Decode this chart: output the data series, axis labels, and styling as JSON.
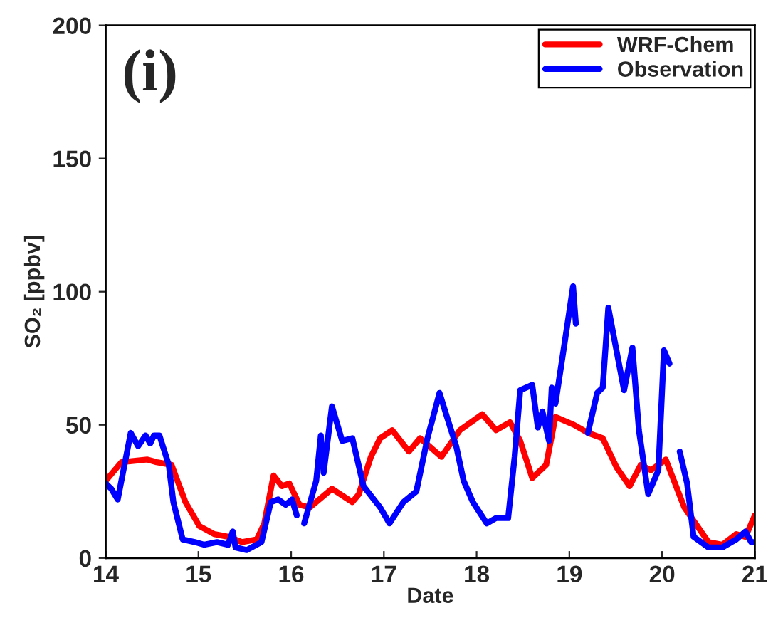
{
  "chart_data": {
    "type": "line",
    "xlabel": "Date",
    "ylabel": "SO₂ [ppbv]",
    "xlim": [
      14,
      21
    ],
    "xticks": [
      14,
      15,
      16,
      17,
      18,
      19,
      20,
      21
    ],
    "ylim": [
      0,
      200
    ],
    "yticks": [
      0,
      50,
      100,
      150,
      200
    ],
    "grid": false,
    "legend": "top right",
    "marker": "none",
    "line_style": "solid",
    "annotations": [
      "(i)"
    ],
    "series": [
      {
        "name": "WRF-Chem",
        "color": "#ff0000",
        "x": [
          14.0,
          14.17,
          14.45,
          14.55,
          14.71,
          14.86,
          15.01,
          15.17,
          15.32,
          15.47,
          15.63,
          15.71,
          15.81,
          15.9,
          15.98,
          16.09,
          16.2,
          16.44,
          16.66,
          16.73,
          16.86,
          16.96,
          17.09,
          17.27,
          17.39,
          17.62,
          17.82,
          18.06,
          18.21,
          18.36,
          18.47,
          18.6,
          18.75,
          18.85,
          19.05,
          19.2,
          19.36,
          19.51,
          19.65,
          19.77,
          19.88,
          20.04,
          20.24,
          20.34,
          20.5,
          20.65,
          20.8,
          20.9,
          21.0
        ],
        "values": [
          29,
          36,
          37,
          36,
          35,
          21,
          12,
          9,
          8,
          6,
          7,
          13,
          31,
          27,
          28,
          20,
          19,
          26,
          21,
          24,
          38,
          45,
          48,
          40,
          45,
          38,
          48,
          54,
          48,
          51,
          44,
          30,
          35,
          53,
          50,
          47,
          45,
          34,
          27,
          35,
          33,
          37,
          19,
          14,
          6,
          5,
          9,
          8,
          16
        ]
      },
      {
        "name": "Observation",
        "color": "#0000ff",
        "x": [
          14.0,
          14.06,
          14.13,
          14.27,
          14.35,
          14.43,
          14.48,
          14.52,
          14.58,
          14.68,
          14.73,
          14.83,
          14.96,
          15.06,
          15.2,
          15.32,
          15.37,
          15.4,
          15.52,
          15.68,
          15.78,
          15.86,
          15.94,
          16.01,
          16.06,
          16.1,
          16.14,
          16.27,
          16.32,
          16.35,
          16.44,
          16.55,
          16.66,
          16.78,
          16.96,
          17.06,
          17.21,
          17.35,
          17.47,
          17.6,
          17.68,
          17.78,
          17.86,
          17.96,
          18.11,
          18.21,
          18.34,
          18.41,
          18.47,
          18.6,
          18.66,
          18.71,
          18.78,
          18.81,
          18.85,
          18.95,
          19.04,
          19.07,
          19.14,
          19.2,
          19.3,
          19.36,
          19.42,
          19.59,
          19.68,
          19.75,
          19.85,
          19.96,
          20.02,
          20.08,
          20.14,
          20.19,
          20.27,
          20.34,
          20.5,
          20.65,
          20.8,
          20.9,
          20.96,
          21.0
        ],
        "values": [
          28,
          26,
          22,
          47,
          42,
          46,
          43,
          46,
          46,
          35,
          21,
          7,
          6,
          5,
          6,
          5,
          10,
          4,
          3,
          6,
          21,
          22,
          20,
          22,
          16,
          null,
          13,
          29,
          46,
          32,
          57,
          44,
          45,
          27,
          19,
          13,
          21,
          25,
          45,
          62,
          53,
          42,
          29,
          21,
          13,
          15,
          15,
          38,
          63,
          65,
          49,
          55,
          44,
          64,
          58,
          81,
          102,
          88,
          null,
          47,
          62,
          64,
          94,
          63,
          79,
          48,
          24,
          33,
          78,
          73,
          null,
          40,
          28,
          8,
          4,
          4,
          7,
          10,
          6,
          6
        ]
      }
    ]
  }
}
